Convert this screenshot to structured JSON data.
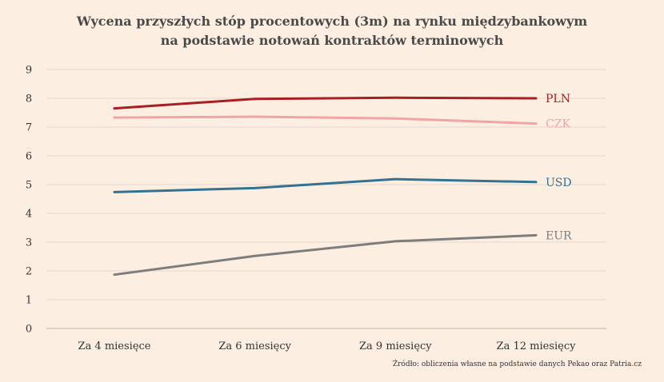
{
  "chart_data": {
    "type": "line",
    "title": [
      "Wycena przyszłych stóp procentowych (3m) na rynku międzybankowym",
      "na podstawie notowań kontraktów terminowych"
    ],
    "categories": [
      "Za 4 miesięce",
      "Za 6 miesięcy",
      "Za 9 miesięcy",
      "Za 12 miesięcy"
    ],
    "ylim": [
      0,
      9
    ],
    "yticks": [
      "0",
      "1",
      "2",
      "3",
      "4",
      "5",
      "6",
      "7",
      "8",
      "9"
    ],
    "grid": true,
    "series": [
      {
        "name": "PLN",
        "values": [
          7.65,
          7.98,
          8.02,
          8.0
        ],
        "color": "#a91e22"
      },
      {
        "name": "CZK",
        "values": [
          7.33,
          7.36,
          7.3,
          7.12
        ],
        "color": "#f0a4a4"
      },
      {
        "name": "USD",
        "values": [
          4.74,
          4.88,
          5.19,
          5.09
        ],
        "color": "#337391"
      },
      {
        "name": "EUR",
        "values": [
          1.87,
          2.52,
          3.03,
          3.24
        ],
        "color": "#7d7d7d"
      }
    ],
    "source": "Źródło: obliczenia własne na podstawie danych Pekao oraz Patria.cz"
  }
}
